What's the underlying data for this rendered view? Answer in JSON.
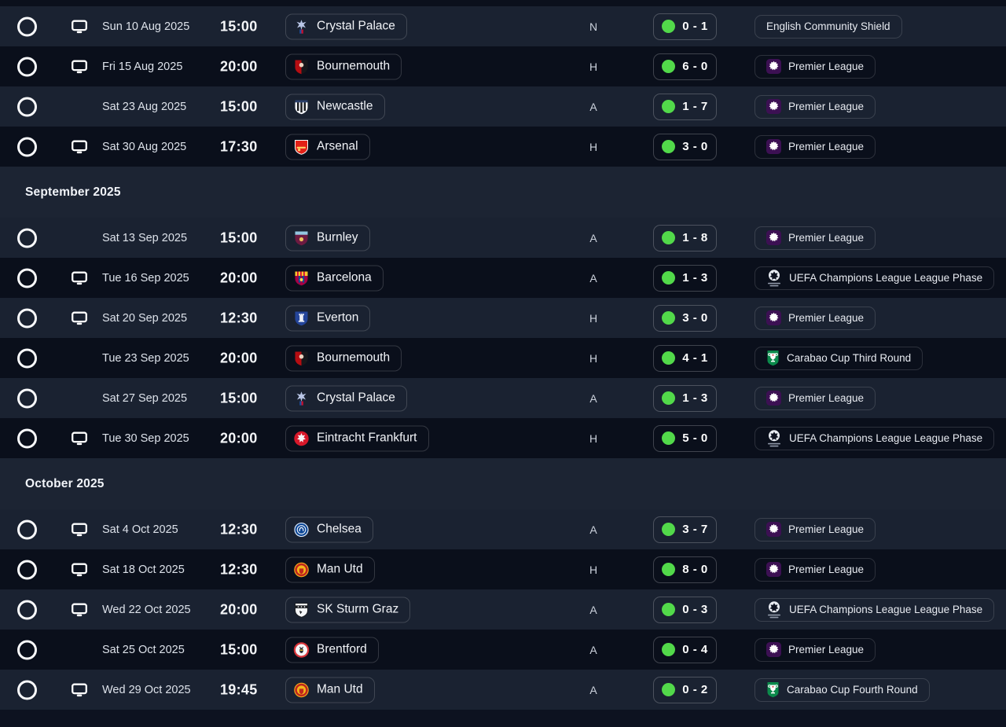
{
  "colors": {
    "result_win_dot": "#52d94a",
    "row_light": "#1a2231",
    "row_dark": "#0a0f1b",
    "section_gap": "#1c2433",
    "premier_league_purple": "#3c1053",
    "carabao_green": "#0b8a4b"
  },
  "sections": [
    {
      "header": "",
      "rows": [
        {
          "tv": true,
          "date": "Sun 10 Aug 2025",
          "time": "15:00",
          "opponent": "Crystal Palace",
          "badge": "crystal-palace",
          "venue": "N",
          "result": "win",
          "score": "0 - 1",
          "competition": "English Community Shield",
          "competition_icon": ""
        },
        {
          "tv": true,
          "date": "Fri 15 Aug 2025",
          "time": "20:00",
          "opponent": "Bournemouth",
          "badge": "bournemouth",
          "venue": "H",
          "result": "win",
          "score": "6 - 0",
          "competition": "Premier League",
          "competition_icon": "premier-league"
        },
        {
          "tv": false,
          "date": "Sat 23 Aug 2025",
          "time": "15:00",
          "opponent": "Newcastle",
          "badge": "newcastle",
          "venue": "A",
          "result": "win",
          "score": "1 - 7",
          "competition": "Premier League",
          "competition_icon": "premier-league"
        },
        {
          "tv": true,
          "date": "Sat 30 Aug 2025",
          "time": "17:30",
          "opponent": "Arsenal",
          "badge": "arsenal",
          "venue": "H",
          "result": "win",
          "score": "3 - 0",
          "competition": "Premier League",
          "competition_icon": "premier-league"
        }
      ]
    },
    {
      "header": "September 2025",
      "rows": [
        {
          "tv": false,
          "date": "Sat 13 Sep 2025",
          "time": "15:00",
          "opponent": "Burnley",
          "badge": "burnley",
          "venue": "A",
          "result": "win",
          "score": "1 - 8",
          "competition": "Premier League",
          "competition_icon": "premier-league"
        },
        {
          "tv": true,
          "date": "Tue 16 Sep 2025",
          "time": "20:00",
          "opponent": "Barcelona",
          "badge": "barcelona",
          "venue": "A",
          "result": "win",
          "score": "1 - 3",
          "competition": "UEFA Champions League League Phase",
          "competition_icon": "ucl"
        },
        {
          "tv": true,
          "date": "Sat 20 Sep 2025",
          "time": "12:30",
          "opponent": "Everton",
          "badge": "everton",
          "venue": "H",
          "result": "win",
          "score": "3 - 0",
          "competition": "Premier League",
          "competition_icon": "premier-league"
        },
        {
          "tv": false,
          "date": "Tue 23 Sep 2025",
          "time": "20:00",
          "opponent": "Bournemouth",
          "badge": "bournemouth",
          "venue": "H",
          "result": "win",
          "score": "4 - 1",
          "competition": "Carabao Cup Third Round",
          "competition_icon": "carabao"
        },
        {
          "tv": false,
          "date": "Sat 27 Sep 2025",
          "time": "15:00",
          "opponent": "Crystal Palace",
          "badge": "crystal-palace",
          "venue": "A",
          "result": "win",
          "score": "1 - 3",
          "competition": "Premier League",
          "competition_icon": "premier-league"
        },
        {
          "tv": true,
          "date": "Tue 30 Sep 2025",
          "time": "20:00",
          "opponent": "Eintracht Frankfurt",
          "badge": "eintracht-frankfurt",
          "venue": "H",
          "result": "win",
          "score": "5 - 0",
          "competition": "UEFA Champions League League Phase",
          "competition_icon": "ucl"
        }
      ]
    },
    {
      "header": "October 2025",
      "rows": [
        {
          "tv": true,
          "date": "Sat 4 Oct 2025",
          "time": "12:30",
          "opponent": "Chelsea",
          "badge": "chelsea",
          "venue": "A",
          "result": "win",
          "score": "3 - 7",
          "competition": "Premier League",
          "competition_icon": "premier-league"
        },
        {
          "tv": true,
          "date": "Sat 18 Oct 2025",
          "time": "12:30",
          "opponent": "Man Utd",
          "badge": "man-utd",
          "venue": "H",
          "result": "win",
          "score": "8 - 0",
          "competition": "Premier League",
          "competition_icon": "premier-league"
        },
        {
          "tv": true,
          "date": "Wed 22 Oct 2025",
          "time": "20:00",
          "opponent": "SK Sturm Graz",
          "badge": "sturm-graz",
          "venue": "A",
          "result": "win",
          "score": "0 - 3",
          "competition": "UEFA Champions League League Phase",
          "competition_icon": "ucl"
        },
        {
          "tv": false,
          "date": "Sat 25 Oct 2025",
          "time": "15:00",
          "opponent": "Brentford",
          "badge": "brentford",
          "venue": "A",
          "result": "win",
          "score": "0 - 4",
          "competition": "Premier League",
          "competition_icon": "premier-league"
        },
        {
          "tv": true,
          "date": "Wed 29 Oct 2025",
          "time": "19:45",
          "opponent": "Man Utd",
          "badge": "man-utd",
          "venue": "A",
          "result": "win",
          "score": "0 - 2",
          "competition": "Carabao Cup Fourth Round",
          "competition_icon": "carabao"
        }
      ]
    }
  ]
}
